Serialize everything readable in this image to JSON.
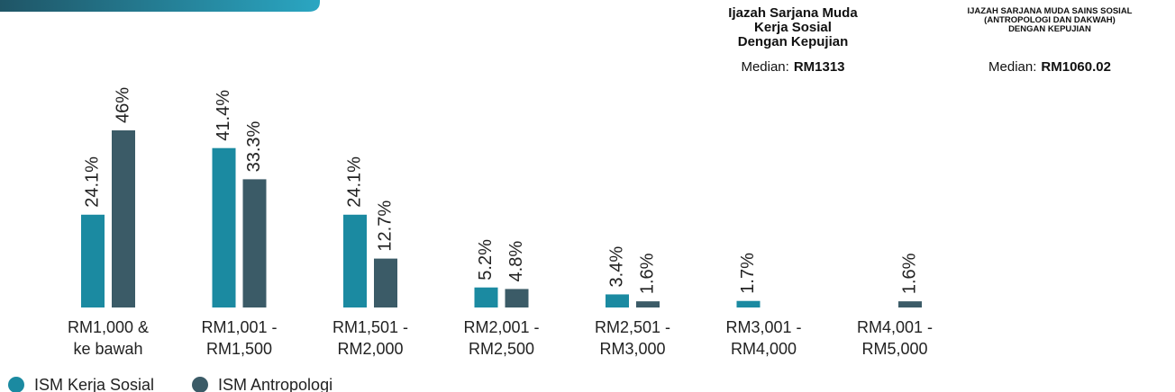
{
  "chart_data": {
    "type": "bar",
    "categories": [
      "RM1,000 & ke bawah",
      "RM1,001 - RM1,500",
      "RM1,501 - RM2,000",
      "RM2,001 - RM2,500",
      "RM2,501 - RM3,000",
      "RM3,001 - RM4,000",
      "RM4,001 - RM5,000"
    ],
    "series": [
      {
        "name": "ISM Kerja Sosial",
        "color": "#1b8aa1",
        "values": [
          24.1,
          41.4,
          24.1,
          5.2,
          3.4,
          1.7,
          null
        ],
        "value_labels": [
          "24.1%",
          "41.4%",
          "24.1%",
          "5.2%",
          "3.4%",
          "1.7%",
          null
        ]
      },
      {
        "name": "ISM Antropologi",
        "color": "#3b5b67",
        "values": [
          46,
          33.3,
          12.7,
          4.8,
          1.6,
          null,
          1.6
        ],
        "value_labels": [
          "46%",
          "33.3%",
          "12.7%",
          "4.8%",
          "1.6%",
          null,
          "1.6%"
        ]
      }
    ],
    "legend": "bottom-left",
    "annotations": [
      {
        "title_lines": [
          "Ijazah Sarjana Muda",
          "Kerja Sosial",
          "Dengan Kepujian"
        ],
        "median_label": "Median:",
        "median_value": "RM1313"
      },
      {
        "title_lines": [
          "IJAZAH SARJANA MUDA SAINS SOSIAL",
          "(ANTROPOLOGI DAN DAKWAH)",
          "DENGAN KEPUJIAN"
        ],
        "median_label": "Median:",
        "median_value": "RM1060.02"
      }
    ]
  }
}
